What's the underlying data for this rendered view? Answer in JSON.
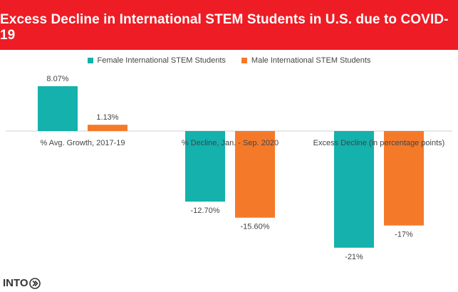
{
  "banner": {
    "title": "Excess Decline in International STEM Students in U.S. due to COVID-19"
  },
  "logo": {
    "text": "INTO"
  },
  "colors": {
    "banner": "#ee1c25",
    "female": "#14b1ad",
    "male": "#f47a2a",
    "axis": "#d0d0d0",
    "text": "#444444"
  },
  "chart_data": {
    "type": "bar",
    "title": "Excess Decline in International STEM Students in U.S. due to COVID-19",
    "categories": [
      "% Avg. Growth, 2017-19",
      "% Decline, Jan. - Sep. 2020",
      "Excess Decline (in percentage points)"
    ],
    "series": [
      {
        "name": "Female International STEM Students",
        "values": [
          8.07,
          -12.7,
          -21
        ],
        "labels": [
          "8.07%",
          "-12.70%",
          "-21%"
        ],
        "color": "#14b1ad"
      },
      {
        "name": "Male International STEM Students",
        "values": [
          1.13,
          -15.6,
          -17
        ],
        "labels": [
          "1.13%",
          "-15.60%",
          "-17%"
        ],
        "color": "#f47a2a"
      }
    ],
    "xlabel": "",
    "ylabel": "",
    "ylim": [
      -22,
      9
    ],
    "grid": false,
    "legend": "top"
  }
}
